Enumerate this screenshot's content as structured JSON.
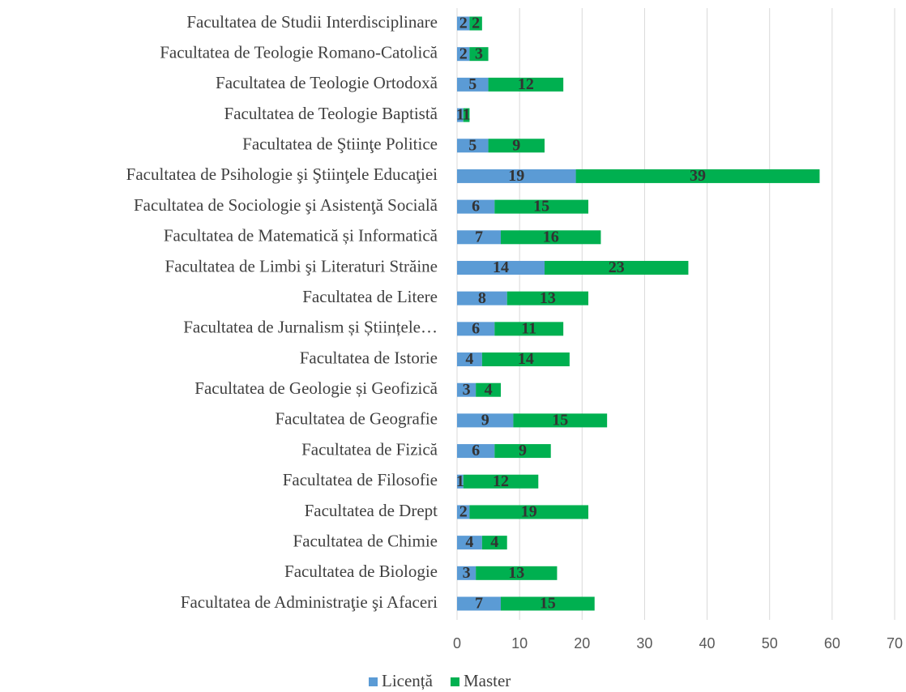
{
  "chart_data": {
    "type": "stacked-barh",
    "categories": [
      "Facultatea de Studii Interdisciplinare",
      "Facultatea de Teologie Romano-Catolică",
      "Facultatea de Teologie Ortodoxă",
      "Facultatea de Teologie Baptistă",
      "Facultatea de Ştiinţe Politice",
      "Facultatea de Psihologie şi Ştiinţele Educaţiei",
      "Facultatea de Sociologie şi Asistenţă Socială",
      "Facultatea de Matematică și Informatică",
      "Facultatea de Limbi şi Literaturi Străine",
      "Facultatea de Litere",
      "Facultatea de Jurnalism și Științele…",
      "Facultatea de Istorie",
      "Facultatea de Geologie și Geofizică",
      "Facultatea de Geografie",
      "Facultatea de Fizică",
      "Facultatea de Filosofie",
      "Facultatea de Drept",
      "Facultatea de Chimie",
      "Facultatea de Biologie",
      "Facultatea de Administraţie şi Afaceri"
    ],
    "series": [
      {
        "name": "Licență",
        "color": "#5b9bd5",
        "values": [
          2,
          2,
          5,
          1,
          5,
          19,
          6,
          7,
          14,
          8,
          6,
          4,
          3,
          9,
          6,
          1,
          2,
          4,
          3,
          7
        ]
      },
      {
        "name": "Master",
        "color": "#00b050",
        "values": [
          2,
          3,
          12,
          1,
          9,
          39,
          15,
          16,
          23,
          13,
          11,
          14,
          4,
          15,
          9,
          12,
          19,
          4,
          13,
          15
        ]
      }
    ],
    "xlim": [
      0,
      70
    ],
    "xticks": [
      0,
      10,
      20,
      30,
      40,
      50,
      60,
      70
    ],
    "grid": true,
    "legend": "bottom"
  }
}
